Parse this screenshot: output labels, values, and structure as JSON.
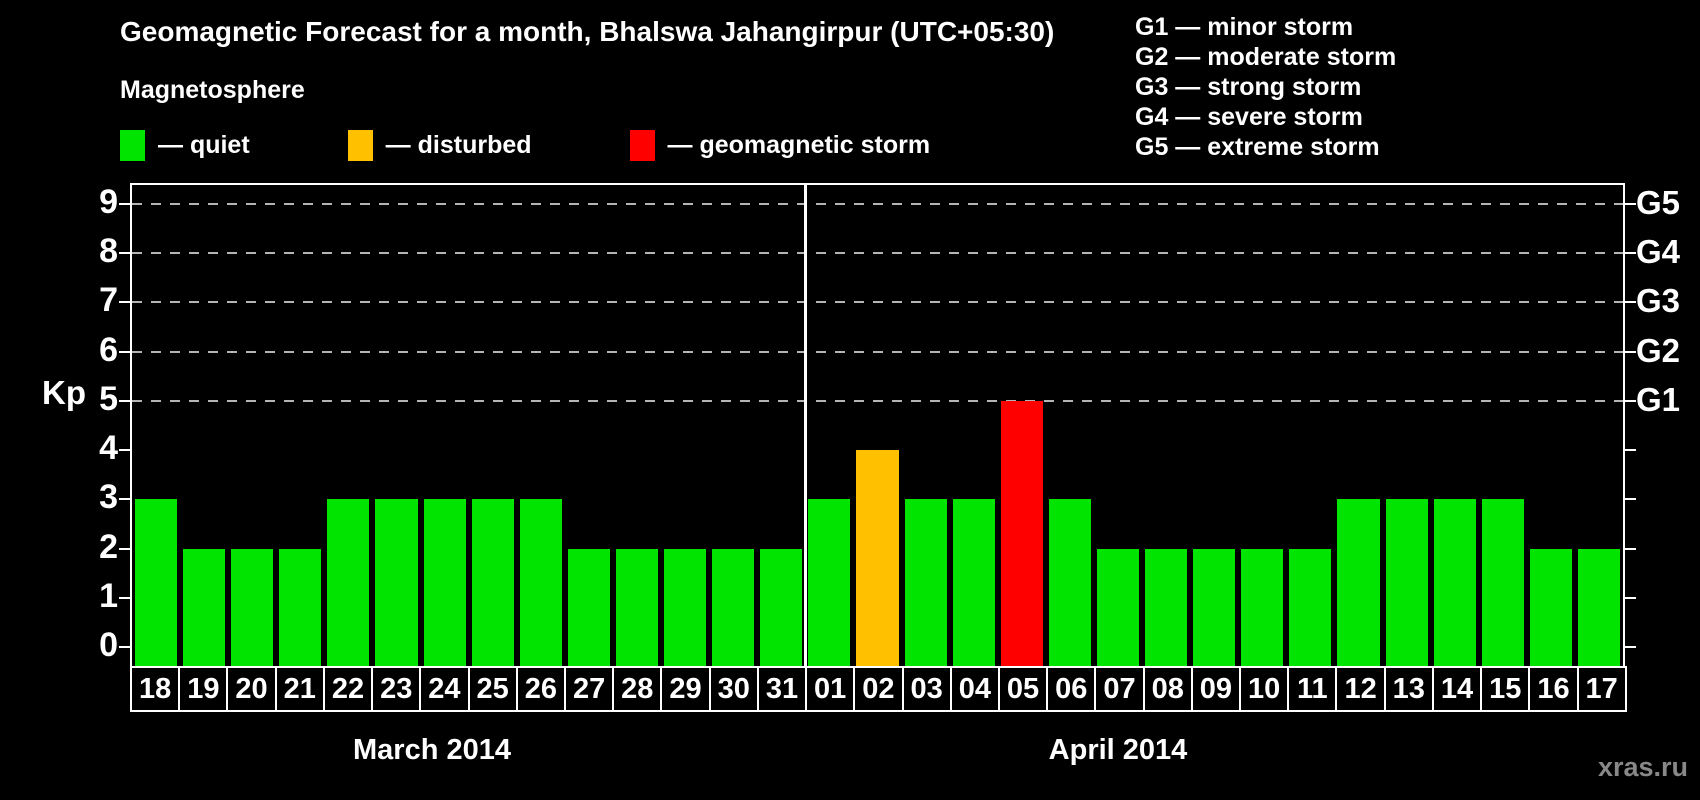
{
  "header": {
    "title": "Geomagnetic Forecast for a month, Bhalswa Jahangirpur (UTC+05:30)"
  },
  "legend": {
    "title": "Magnetosphere",
    "items": [
      {
        "label": "— quiet",
        "color": "#00e400",
        "status": "quiet"
      },
      {
        "label": "— disturbed",
        "color": "#ffc000",
        "status": "disturbed"
      },
      {
        "label": "— geomagnetic storm",
        "color": "#ff0000",
        "status": "storm"
      }
    ]
  },
  "g_scale": [
    "G1 — minor storm",
    "G2 — moderate storm",
    "G3 — strong storm",
    "G4 — severe storm",
    "G5 — extreme storm"
  ],
  "y_axis": {
    "label": "Kp",
    "ticks": [
      0,
      1,
      2,
      3,
      4,
      5,
      6,
      7,
      8,
      9
    ]
  },
  "right_axis": [
    {
      "kp": 5,
      "label": "G1"
    },
    {
      "kp": 6,
      "label": "G2"
    },
    {
      "kp": 7,
      "label": "G3"
    },
    {
      "kp": 8,
      "label": "G4"
    },
    {
      "kp": 9,
      "label": "G5"
    }
  ],
  "watermark": "xras.ru",
  "chart_data": {
    "type": "bar",
    "title": "Geomagnetic Forecast for a month, Bhalswa Jahangirpur (UTC+05:30)",
    "xlabel": "",
    "ylabel": "Kp",
    "ylim": [
      0,
      9.4
    ],
    "grid": "dashed horizontal at Kp 5-9 only",
    "grid_levels": [
      5,
      6,
      7,
      8,
      9
    ],
    "categories": [
      "18",
      "19",
      "20",
      "21",
      "22",
      "23",
      "24",
      "25",
      "26",
      "27",
      "28",
      "29",
      "30",
      "31",
      "01",
      "02",
      "03",
      "04",
      "05",
      "06",
      "07",
      "08",
      "09",
      "10",
      "11",
      "12",
      "13",
      "14",
      "15",
      "16",
      "17"
    ],
    "values": [
      3,
      2,
      2,
      2,
      3,
      3,
      3,
      3,
      3,
      2,
      2,
      2,
      2,
      2,
      3,
      4,
      3,
      3,
      5,
      3,
      2,
      2,
      2,
      2,
      2,
      3,
      3,
      3,
      3,
      2,
      2
    ],
    "statuses": [
      "quiet",
      "quiet",
      "quiet",
      "quiet",
      "quiet",
      "quiet",
      "quiet",
      "quiet",
      "quiet",
      "quiet",
      "quiet",
      "quiet",
      "quiet",
      "quiet",
      "quiet",
      "disturbed",
      "quiet",
      "quiet",
      "storm",
      "quiet",
      "quiet",
      "quiet",
      "quiet",
      "quiet",
      "quiet",
      "quiet",
      "quiet",
      "quiet",
      "quiet",
      "quiet",
      "quiet"
    ],
    "status_colors": {
      "quiet": "#00e400",
      "disturbed": "#ffc000",
      "storm": "#ff0000"
    },
    "months": [
      {
        "label": "March 2014",
        "days": 14
      },
      {
        "label": "April 2014",
        "days": 17
      }
    ]
  }
}
